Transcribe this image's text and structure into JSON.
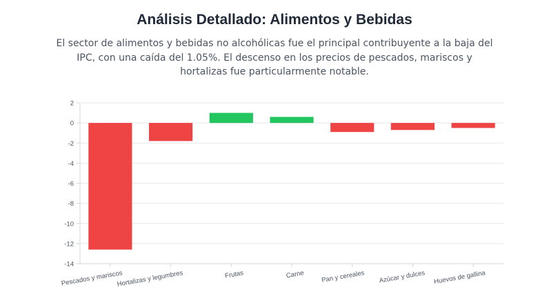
{
  "header": {
    "title": "Análisis Detallado: Alimentos y Bebidas",
    "description": "El sector de alimentos y bebidas no alcohólicas fue el principal contribuyente a la baja del IPC, con una caída del 1.05%. El descenso en los precios de pescados, mariscos y hortalizas fue particularmente notable."
  },
  "chart_data": {
    "type": "bar",
    "categories": [
      "Pescados y mariscos",
      "Hortalizas y legumbres",
      "Frutas",
      "Carne",
      "Pan y cereales",
      "Azúcar y dulces",
      "Huevos de gallina"
    ],
    "values": [
      -12.6,
      -1.8,
      1.0,
      0.6,
      -0.9,
      -0.7,
      -0.5
    ],
    "colors": [
      "#ef4444",
      "#ef4444",
      "#22c55e",
      "#22c55e",
      "#ef4444",
      "#ef4444",
      "#ef4444"
    ],
    "negative_color": "#ef4444",
    "positive_color": "#22c55e",
    "ylim": [
      -14,
      2
    ],
    "yticks": [
      2,
      0,
      -2,
      -4,
      -6,
      -8,
      -10,
      -12,
      -14
    ],
    "grid": true,
    "legend": "none"
  }
}
